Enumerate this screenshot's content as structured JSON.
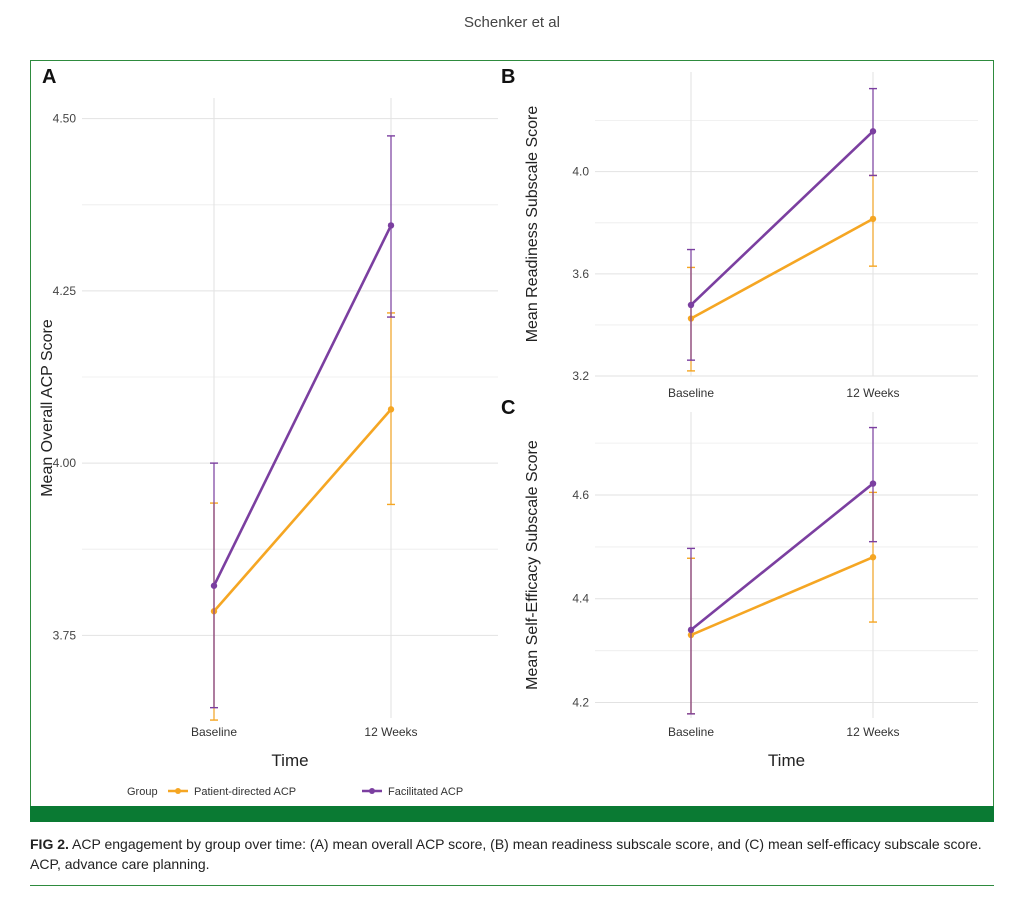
{
  "header": {
    "running_head": "Schenker et al"
  },
  "colors": {
    "patient": "#f5a623",
    "facilitated": "#7b3fa0",
    "frame": "#2e8b3e",
    "bar": "#0a7a33"
  },
  "legend": {
    "title": "Group",
    "items": [
      "Patient-directed ACP",
      "Facilitated ACP"
    ]
  },
  "chart_data": [
    {
      "panel": "A",
      "type": "line",
      "xlabel": "Time",
      "ylabel": "Mean Overall ACP Score",
      "categories": [
        "Baseline",
        "12 Weeks"
      ],
      "ylim": [
        3.63,
        4.53
      ],
      "yticks": [
        3.75,
        4.0,
        4.25,
        4.5
      ],
      "ytick_labels": [
        "3.75",
        "4.00",
        "4.25",
        "4.50"
      ],
      "series": [
        {
          "name": "Patient-directed ACP",
          "values": [
            3.785,
            4.078
          ],
          "lower": [
            3.627,
            3.94
          ],
          "upper": [
            3.942,
            4.218
          ]
        },
        {
          "name": "Facilitated ACP",
          "values": [
            3.822,
            4.345
          ],
          "lower": [
            3.645,
            4.212
          ],
          "upper": [
            4.0,
            4.475
          ]
        }
      ]
    },
    {
      "panel": "B",
      "type": "line",
      "xlabel": "",
      "ylabel": "Mean Readiness Subscale Score",
      "categories": [
        "Baseline",
        "12 Weeks"
      ],
      "ylim": [
        3.2,
        4.39
      ],
      "yticks": [
        3.2,
        3.6,
        4.0
      ],
      "ytick_labels": [
        "3.2",
        "3.6",
        "4.0"
      ],
      "series": [
        {
          "name": "Patient-directed ACP",
          "values": [
            3.425,
            3.815
          ],
          "lower": [
            3.22,
            3.63
          ],
          "upper": [
            3.625,
            3.985
          ]
        },
        {
          "name": "Facilitated ACP",
          "values": [
            3.478,
            4.158
          ],
          "lower": [
            3.262,
            3.985
          ],
          "upper": [
            3.695,
            4.325
          ]
        }
      ]
    },
    {
      "panel": "C",
      "type": "line",
      "xlabel": "Time",
      "ylabel": "Mean Self-Efficacy Subscale Score",
      "categories": [
        "Baseline",
        "12 Weeks"
      ],
      "ylim": [
        4.17,
        4.76
      ],
      "yticks": [
        4.2,
        4.4,
        4.6
      ],
      "ytick_labels": [
        "4.2",
        "4.4",
        "4.6"
      ],
      "series": [
        {
          "name": "Patient-directed ACP",
          "values": [
            4.33,
            4.48
          ],
          "lower": [
            4.178,
            4.355
          ],
          "upper": [
            4.478,
            4.605
          ]
        },
        {
          "name": "Facilitated ACP",
          "values": [
            4.34,
            4.622
          ],
          "lower": [
            4.178,
            4.51
          ],
          "upper": [
            4.497,
            4.73
          ]
        }
      ]
    }
  ],
  "caption": {
    "label": "FIG 2.",
    "text": "ACP engagement by group over time: (A) mean overall ACP score, (B) mean readiness subscale score, and (C) mean self-efficacy subscale score. ACP, advance care planning."
  }
}
